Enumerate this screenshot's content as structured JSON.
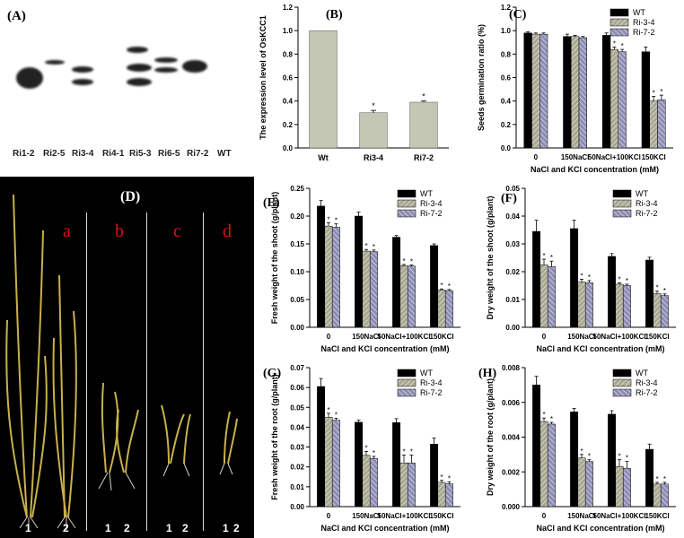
{
  "panel_A": {
    "label": "(A)",
    "lanes": [
      "Ri1-2",
      "Ri2-5",
      "Ri3-4",
      "Ri4-1",
      "Ri5-3",
      "Ri6-5",
      "Ri7-2",
      "WT"
    ]
  },
  "panel_D": {
    "label": "(D)",
    "groups": [
      {
        "letter": "a",
        "plants": [
          "1",
          "2"
        ]
      },
      {
        "letter": "b",
        "plants": [
          "1",
          "2"
        ]
      },
      {
        "letter": "c",
        "plants": [
          "1",
          "2"
        ]
      },
      {
        "letter": "d",
        "plants": [
          "1",
          "2"
        ]
      }
    ]
  },
  "colors": {
    "wt": "#000000",
    "ri34": "#a8a890",
    "ri72": "#8c8cb4",
    "bar_B": "#c4c7b4"
  },
  "chart_data": [
    {
      "id": "B",
      "panel_label": "(B)",
      "type": "bar",
      "categories": [
        "Wt",
        "Ri3-4",
        "Ri7-2"
      ],
      "values": [
        1.0,
        0.3,
        0.39
      ],
      "errors": [
        0.0,
        0.02,
        0.01
      ],
      "sig": [
        "",
        "*",
        "*"
      ],
      "ylabel": "The expression level of OsKCC1",
      "xlabel": "",
      "ylim": [
        0,
        1.2
      ],
      "yticks": [
        0.0,
        0.2,
        0.4,
        0.6,
        0.8,
        1.0,
        1.2
      ],
      "ytick_labels": [
        "0.0",
        "0.2",
        "0.4",
        "0.6",
        "0.8",
        "1.0",
        "1.2"
      ]
    },
    {
      "id": "C",
      "panel_label": "(C)",
      "type": "bar",
      "categories": [
        "0",
        "150NaCl",
        "50NaCl+100KCl",
        "150KCl"
      ],
      "series": [
        {
          "name": "WT",
          "values": [
            0.98,
            0.95,
            0.96,
            0.82
          ],
          "errors": [
            0.01,
            0.02,
            0.02,
            0.04
          ],
          "sig": [
            "",
            "",
            "",
            ""
          ]
        },
        {
          "name": "Ri-3-4",
          "values": [
            0.97,
            0.95,
            0.84,
            0.4
          ],
          "errors": [
            0.01,
            0.01,
            0.02,
            0.04
          ],
          "sig": [
            "",
            "",
            "*",
            "*"
          ]
        },
        {
          "name": "Ri-7-2",
          "values": [
            0.97,
            0.94,
            0.82,
            0.41
          ],
          "errors": [
            0.01,
            0.01,
            0.02,
            0.04
          ],
          "sig": [
            "",
            "",
            "*",
            "*"
          ]
        }
      ],
      "ylabel": "Seeds germination ratio (%)",
      "xlabel": "NaCl and KCl concentration (mM)",
      "ylim": [
        0,
        1.2
      ],
      "yticks": [
        0.0,
        0.2,
        0.4,
        0.6,
        0.8,
        1.0,
        1.2
      ],
      "ytick_labels": [
        "0.0",
        "0.2",
        "0.4",
        "0.6",
        "0.8",
        "1.0",
        "1.2"
      ],
      "legend": "top-right"
    },
    {
      "id": "E",
      "panel_label": "(E)",
      "type": "bar",
      "categories": [
        "0",
        "150NaCl",
        "50NaCl+100KCl",
        "150KCl"
      ],
      "series": [
        {
          "name": "WT",
          "values": [
            0.218,
            0.2,
            0.162,
            0.147
          ],
          "errors": [
            0.01,
            0.007,
            0.003,
            0.003
          ],
          "sig": [
            "",
            "",
            "",
            ""
          ]
        },
        {
          "name": "Ri-3-4",
          "values": [
            0.182,
            0.137,
            0.111,
            0.067
          ],
          "errors": [
            0.006,
            0.003,
            0.002,
            0.002
          ],
          "sig": [
            "*",
            "*",
            "*",
            "*"
          ]
        },
        {
          "name": "Ri-7-2",
          "values": [
            0.18,
            0.136,
            0.11,
            0.066
          ],
          "errors": [
            0.006,
            0.003,
            0.002,
            0.002
          ],
          "sig": [
            "*",
            "*",
            "*",
            "*"
          ]
        }
      ],
      "ylabel": "Fresh weight of the shoot (g/plant)",
      "xlabel": "NaCl and KCl concentration (mM)",
      "ylim": [
        0,
        0.25
      ],
      "yticks": [
        0.0,
        0.05,
        0.1,
        0.15,
        0.2,
        0.25
      ],
      "ytick_labels": [
        "0.00",
        "0.05",
        "0.10",
        "0.15",
        "0.20",
        "0.25"
      ],
      "legend": "top-right"
    },
    {
      "id": "F",
      "panel_label": "(F)",
      "type": "bar",
      "categories": [
        "0",
        "150NaCl",
        "50NaCl+100KCl",
        "150KCl"
      ],
      "series": [
        {
          "name": "WT",
          "values": [
            0.0345,
            0.0355,
            0.0255,
            0.0242
          ],
          "errors": [
            0.004,
            0.003,
            0.001,
            0.001
          ],
          "sig": [
            "",
            "",
            "",
            ""
          ]
        },
        {
          "name": "Ri-3-4",
          "values": [
            0.0225,
            0.0163,
            0.0155,
            0.0122
          ],
          "errors": [
            0.002,
            0.001,
            0.0005,
            0.0008
          ],
          "sig": [
            "*",
            "*",
            "*",
            "*"
          ]
        },
        {
          "name": "Ri-7-2",
          "values": [
            0.0218,
            0.016,
            0.015,
            0.0114
          ],
          "errors": [
            0.002,
            0.0008,
            0.0005,
            0.0006
          ],
          "sig": [
            "*",
            "*",
            "*",
            "*"
          ]
        }
      ],
      "ylabel": "Dry weight of the shoot (g/plant)",
      "xlabel": "NaCl and KCl concentration (mM)",
      "ylim": [
        0,
        0.05
      ],
      "yticks": [
        0.0,
        0.01,
        0.02,
        0.03,
        0.04,
        0.05
      ],
      "ytick_labels": [
        "0.00",
        "0.01",
        "0.02",
        "0.03",
        "0.04",
        "0.05"
      ],
      "legend": "top-right"
    },
    {
      "id": "G",
      "panel_label": "(G)",
      "type": "bar",
      "categories": [
        "0",
        "150NaCl",
        "50NaCl+100KCl",
        "150KCl"
      ],
      "series": [
        {
          "name": "WT",
          "values": [
            0.0605,
            0.0425,
            0.0423,
            0.0315
          ],
          "errors": [
            0.004,
            0.001,
            0.002,
            0.003
          ],
          "sig": [
            "",
            "",
            "",
            ""
          ]
        },
        {
          "name": "Ri-3-4",
          "values": [
            0.045,
            0.0258,
            0.022,
            0.0122
          ],
          "errors": [
            0.002,
            0.002,
            0.004,
            0.001
          ],
          "sig": [
            "*",
            "*",
            "*",
            "*"
          ]
        },
        {
          "name": "Ri-7-2",
          "values": [
            0.0435,
            0.0243,
            0.022,
            0.0115
          ],
          "errors": [
            0.001,
            0.001,
            0.004,
            0.001
          ],
          "sig": [
            "*",
            "*",
            "*",
            "*"
          ]
        }
      ],
      "ylabel": "Fresh weight of the root (g/plant)",
      "xlabel": "NaCl and KCl concentration (mM)",
      "ylim": [
        0,
        0.07
      ],
      "yticks": [
        0.0,
        0.01,
        0.02,
        0.03,
        0.04,
        0.05,
        0.06,
        0.07
      ],
      "ytick_labels": [
        "0.00",
        "0.01",
        "0.02",
        "0.03",
        "0.04",
        "0.05",
        "0.06",
        "0.07"
      ],
      "legend": "top-right"
    },
    {
      "id": "H",
      "panel_label": "(H)",
      "type": "bar",
      "categories": [
        "0",
        "150NaCl",
        "50NaCl+100KCl",
        "150KCl"
      ],
      "series": [
        {
          "name": "WT",
          "values": [
            0.007,
            0.00545,
            0.00532,
            0.0033
          ],
          "errors": [
            0.0005,
            0.0002,
            0.0002,
            0.0003
          ],
          "sig": [
            "",
            "",
            "",
            ""
          ]
        },
        {
          "name": "Ri-3-4",
          "values": [
            0.0049,
            0.0028,
            0.0023,
            0.0013
          ],
          "errors": [
            0.0002,
            0.0002,
            0.0004,
            0.0001
          ],
          "sig": [
            "*",
            "*",
            "*",
            "*"
          ]
        },
        {
          "name": "Ri-7-2",
          "values": [
            0.00475,
            0.0026,
            0.0022,
            0.0013
          ],
          "errors": [
            0.0001,
            0.0001,
            0.0004,
            0.0001
          ],
          "sig": [
            "*",
            "*",
            "*",
            "*"
          ]
        }
      ],
      "ylabel": "Dry weight of the root (g/plant)",
      "xlabel": "NaCl and KCl concentration (mM)",
      "ylim": [
        0,
        0.008
      ],
      "yticks": [
        0.0,
        0.002,
        0.004,
        0.006,
        0.008
      ],
      "ytick_labels": [
        "0.000",
        "0.002",
        "0.004",
        "0.006",
        "0.008"
      ],
      "legend": "top-right"
    }
  ]
}
